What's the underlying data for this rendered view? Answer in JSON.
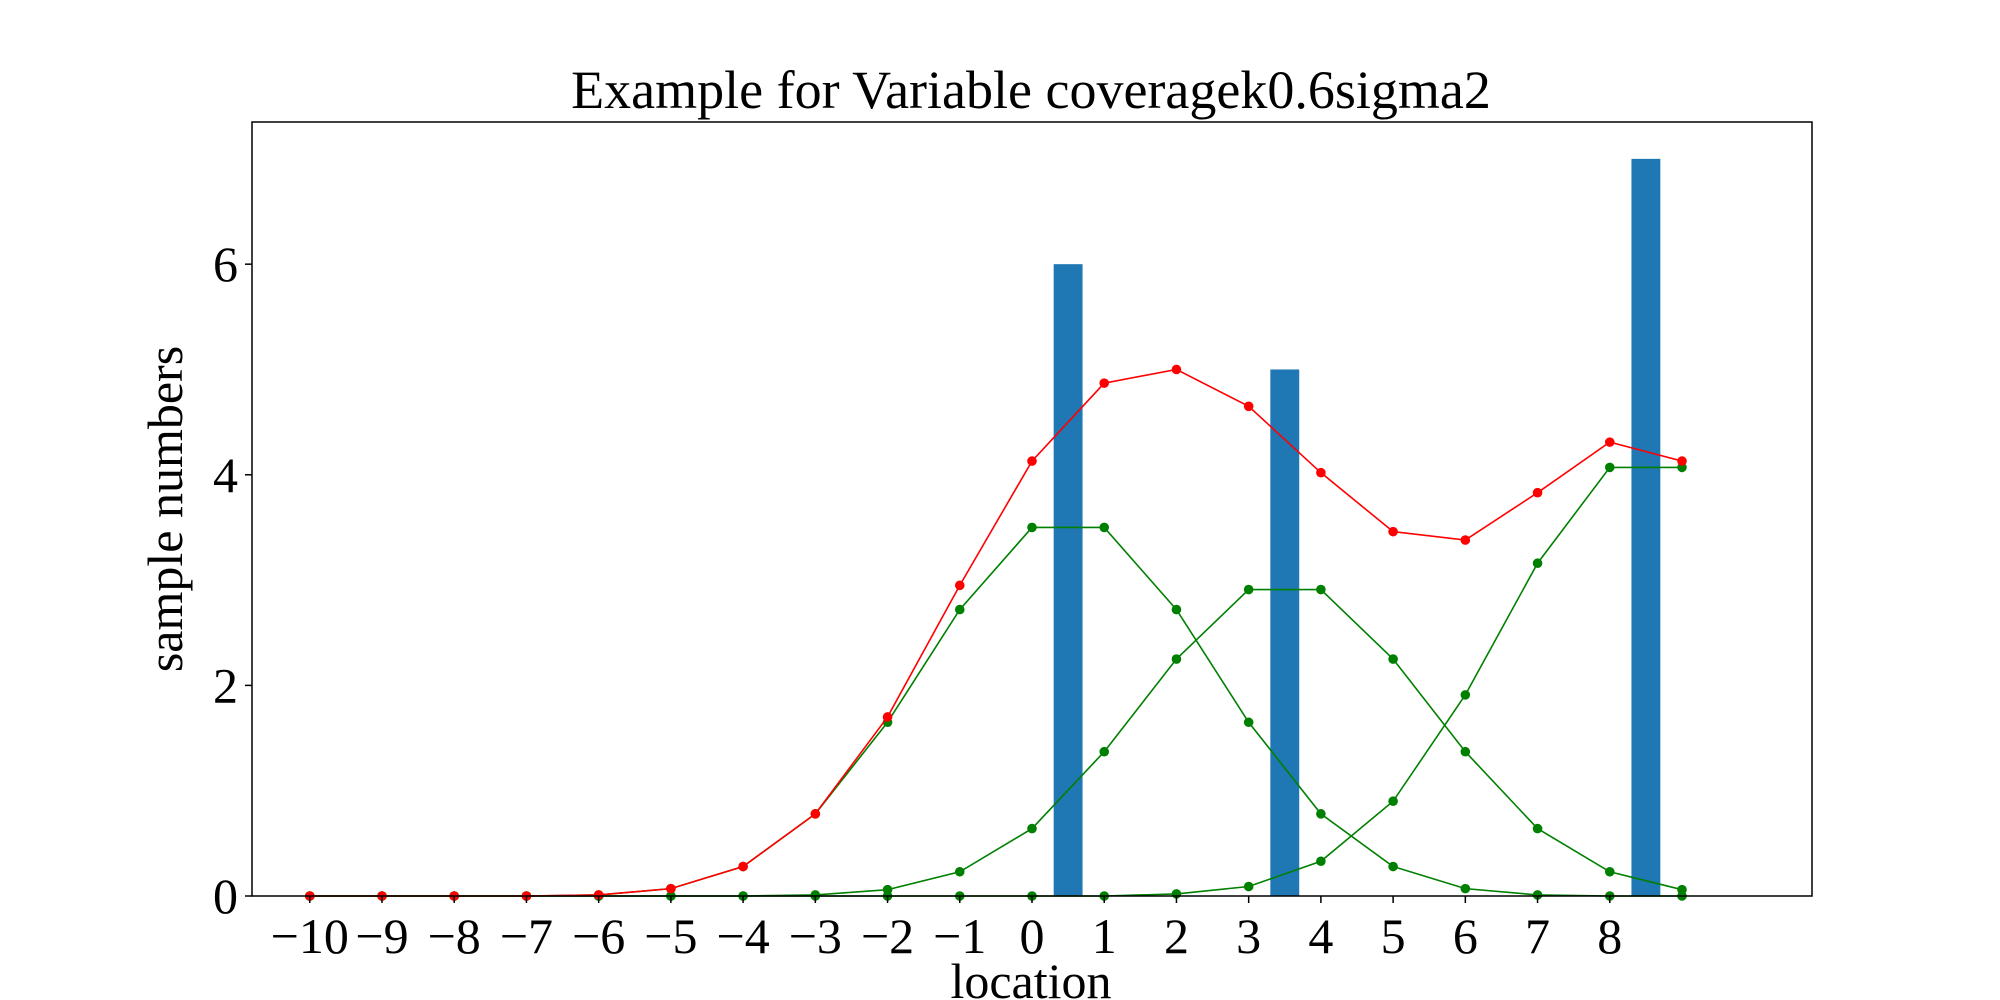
{
  "chart_data": {
    "type": "bar",
    "title": "Example for Variable coveragek0.6sigma2",
    "xlabel": "location",
    "ylabel": "sample numbers",
    "xlim": [
      -10.8,
      10.8
    ],
    "ylim": [
      0,
      7.35
    ],
    "xticks": [
      -10,
      -9,
      -8,
      -7,
      -6,
      -5,
      -4,
      -3,
      -2,
      -1,
      0,
      1,
      2,
      3,
      4,
      5,
      6,
      7,
      8
    ],
    "xtick_labels": [
      "−10",
      "−9",
      "−8",
      "−7",
      "−6",
      "−5",
      "−4",
      "−3",
      "−2",
      "−1",
      "0",
      "1",
      "2",
      "3",
      "4",
      "5",
      "6",
      "7",
      "8"
    ],
    "yticks": [
      0,
      2,
      4,
      6
    ],
    "ytick_labels": [
      "0",
      "2",
      "4",
      "6"
    ],
    "grid": false,
    "bars": {
      "color": "#1f77b4",
      "width": 0.4,
      "x": [
        0.5,
        3.5,
        8.5
      ],
      "values": [
        6,
        5,
        7
      ]
    },
    "series": [
      {
        "color": "#ff0000",
        "x": [
          -10,
          -9,
          -8,
          -7,
          -6,
          -5,
          -4,
          -3,
          -2,
          -1,
          0,
          1,
          2,
          3,
          4,
          5,
          6,
          7,
          8,
          9
        ],
        "values": [
          0,
          0,
          0,
          0,
          0.01,
          0.07,
          0.28,
          0.78,
          1.7,
          2.95,
          4.13,
          4.87,
          5.0,
          4.65,
          4.02,
          3.46,
          3.38,
          3.83,
          4.31,
          4.13
        ]
      },
      {
        "color": "#008000",
        "x": [
          -10,
          -9,
          -8,
          -7,
          -6,
          -5,
          -4,
          -3,
          -2,
          -1,
          0,
          1,
          2,
          3,
          4,
          5,
          6,
          7,
          8,
          9
        ],
        "values": [
          0,
          0,
          0,
          0,
          0.01,
          0.07,
          0.28,
          0.78,
          1.65,
          2.72,
          3.5,
          3.5,
          2.72,
          1.65,
          0.78,
          0.28,
          0.07,
          0.01,
          0,
          0
        ]
      },
      {
        "color": "#008000",
        "x": [
          -10,
          -9,
          -8,
          -7,
          -6,
          -5,
          -4,
          -3,
          -2,
          -1,
          0,
          1,
          2,
          3,
          4,
          5,
          6,
          7,
          8,
          9
        ],
        "values": [
          0,
          0,
          0,
          0,
          0,
          0,
          0,
          0.01,
          0.06,
          0.23,
          0.64,
          1.37,
          2.25,
          2.91,
          2.91,
          2.25,
          1.37,
          0.64,
          0.23,
          0.06
        ]
      },
      {
        "color": "#008000",
        "x": [
          -10,
          -9,
          -8,
          -7,
          -6,
          -5,
          -4,
          -3,
          -2,
          -1,
          0,
          1,
          2,
          3,
          4,
          5,
          6,
          7,
          8,
          9
        ],
        "values": [
          0,
          0,
          0,
          0,
          0,
          0,
          0,
          0,
          0,
          0,
          0,
          0,
          0.02,
          0.09,
          0.33,
          0.9,
          1.91,
          3.16,
          4.07,
          4.07
        ]
      }
    ]
  }
}
